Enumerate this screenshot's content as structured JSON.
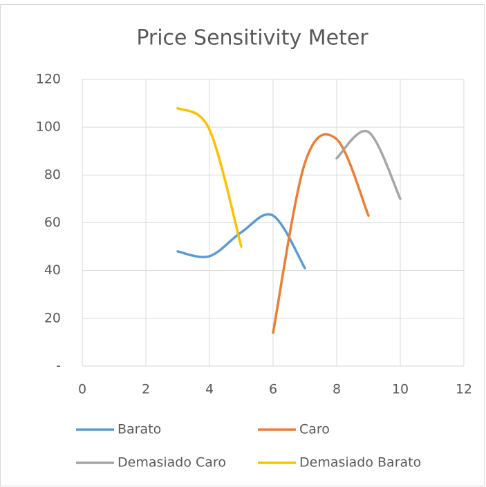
{
  "chart_data": {
    "type": "line",
    "title": "Price Sensitivity Meter",
    "smooth": true,
    "series": [
      {
        "name": "Barato",
        "color": "#5b9bd5",
        "x": [
          3,
          4,
          5,
          6,
          7
        ],
        "values": [
          48,
          46,
          56,
          63,
          41
        ]
      },
      {
        "name": "Caro",
        "color": "#ed7d31",
        "x": [
          6,
          7,
          8,
          9
        ],
        "values": [
          14,
          85,
          95,
          63
        ]
      },
      {
        "name": "Demasiado Caro",
        "color": "#a5a5a5",
        "x": [
          8,
          9,
          10
        ],
        "values": [
          87,
          98,
          70
        ]
      },
      {
        "name": "Demasiado Barato",
        "color": "#ffc000",
        "x": [
          3,
          4,
          5
        ],
        "values": [
          108,
          99,
          50
        ]
      }
    ],
    "xlim": [
      0,
      12
    ],
    "xticks": [
      0,
      2,
      4,
      6,
      8,
      10,
      12
    ],
    "ylim": [
      0,
      120
    ],
    "yticks": [
      {
        "value": 0,
        "label": "-"
      },
      20,
      40,
      60,
      80,
      100,
      120
    ],
    "grid": true,
    "legend": "bottom"
  }
}
